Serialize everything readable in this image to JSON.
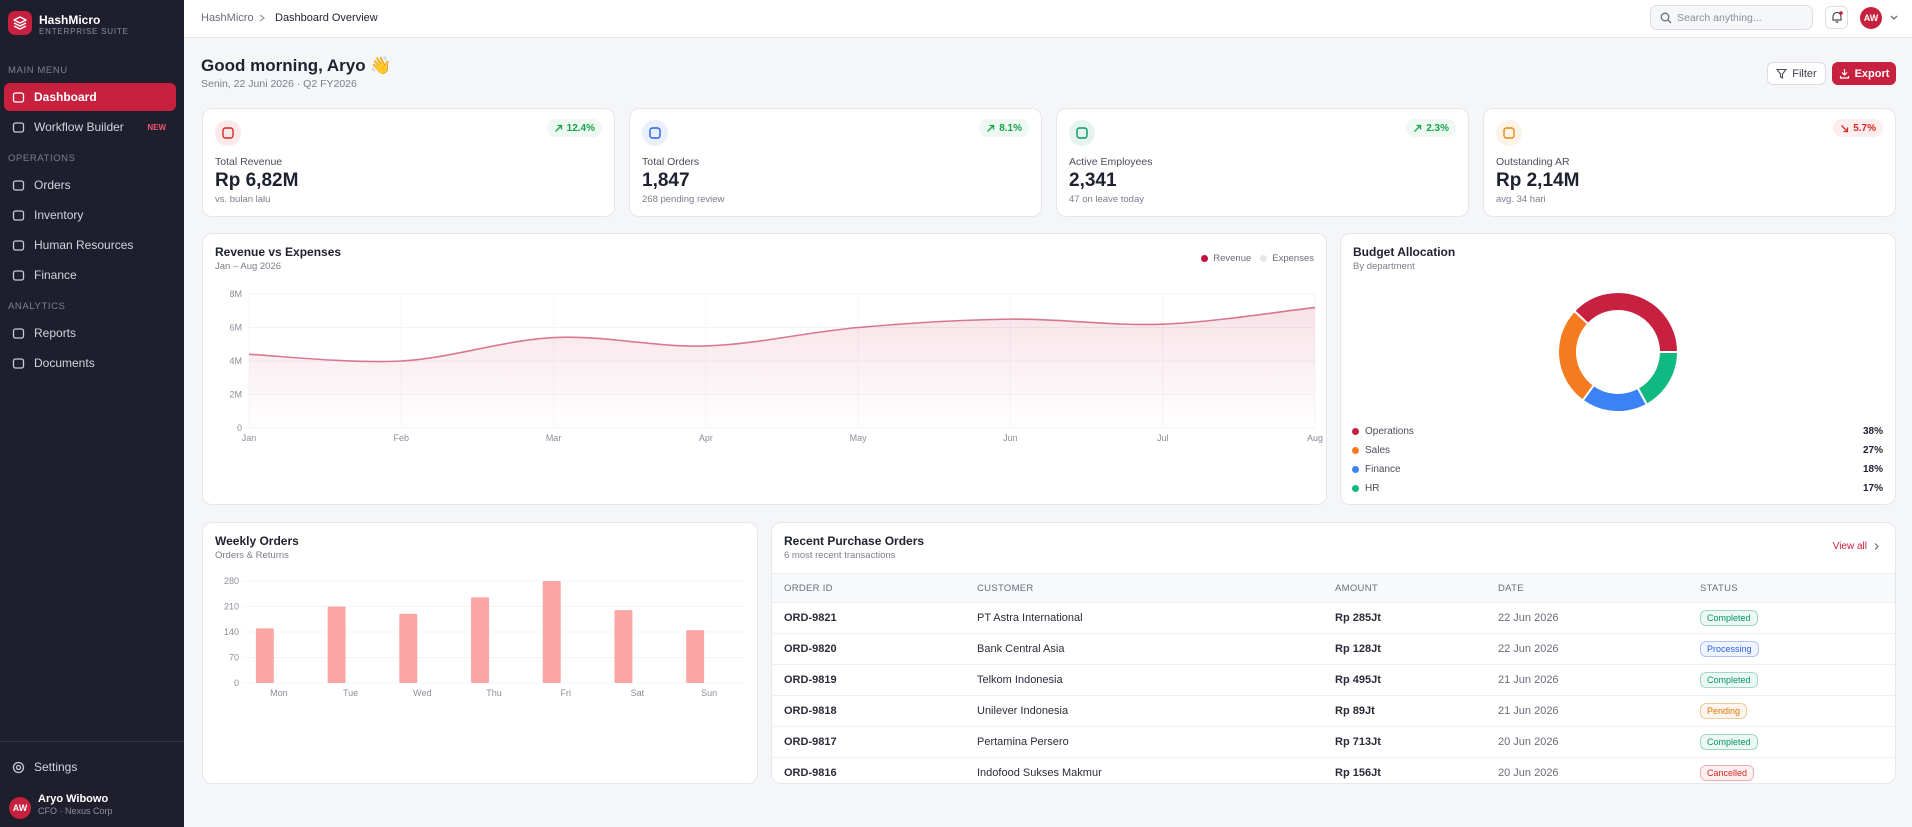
{
  "sidebar": {
    "brand": "HashMicro",
    "tagline": "ENTERPRISE SUITE",
    "sections": [
      {
        "title": "MAIN MENU",
        "items": [
          {
            "label": "Dashboard",
            "active": true
          },
          {
            "label": "Workflow Builder",
            "badge": "NEW"
          }
        ]
      },
      {
        "title": "OPERATIONS",
        "items": [
          {
            "label": "Orders"
          },
          {
            "label": "Inventory"
          },
          {
            "label": "Human Resources"
          },
          {
            "label": "Finance"
          }
        ]
      },
      {
        "title": "ANALYTICS",
        "items": [
          {
            "label": "Reports"
          },
          {
            "label": "Documents"
          }
        ]
      }
    ],
    "settings": "Settings",
    "user": {
      "initials": "AW",
      "name": "Aryo Wibowo",
      "role": "CFO · Nexus Corp"
    }
  },
  "topbar": {
    "breadcrumb": [
      "HashMicro",
      "Dashboard Overview"
    ],
    "search_placeholder": "Search anything...",
    "avatar": "AW"
  },
  "greeting": {
    "title": "Good morning, Aryo 👋",
    "date": "Senin, 22 Juni 2026 · Q2 FY2026",
    "buttons": [
      "Filter",
      "Export"
    ]
  },
  "kpis": [
    {
      "label": "Total Revenue",
      "value": "Rp 6,82M",
      "note": "vs. bulan lalu",
      "change": "12.4%",
      "trend": "up",
      "change_color": "#16a34a",
      "icon_color": "#dc2626"
    },
    {
      "label": "Total Orders",
      "value": "1,847",
      "note": "268 pending review",
      "change": "8.1%",
      "trend": "up",
      "change_color": "#16a34a",
      "icon_color": "#2563eb"
    },
    {
      "label": "Active Employees",
      "value": "2,341",
      "note": "47 on leave today",
      "change": "2.3%",
      "trend": "up",
      "change_color": "#16a34a",
      "icon_color": "#059669"
    },
    {
      "label": "Outstanding AR",
      "value": "Rp 2,14M",
      "note": "avg. 34 hari",
      "change": "5.7%",
      "trend": "down",
      "change_color": "#dc2626",
      "icon_color": "#ea8a0c"
    }
  ],
  "chart_data": [
    {
      "type": "line",
      "title": "Revenue vs Expenses",
      "subtitle": "Jan – Aug 2026",
      "categories": [
        "Jan",
        "Feb",
        "Mar",
        "Apr",
        "May",
        "Jun",
        "Jul",
        "Aug"
      ],
      "series": [
        {
          "name": "Revenue",
          "color": "#be123c",
          "values": [
            4.4,
            4.0,
            5.4,
            4.9,
            6.0,
            6.5,
            6.2,
            7.2
          ]
        },
        {
          "name": "Expenses",
          "color": "#e5e7eb",
          "values": [
            null,
            null,
            null,
            null,
            null,
            null,
            null,
            null
          ]
        }
      ],
      "ylim": [
        0,
        8
      ],
      "yticks": [
        0,
        {
          "value": 2,
          "label": "2M"
        },
        {
          "value": 4,
          "label": "4M"
        },
        {
          "value": 6,
          "label": "6M"
        },
        {
          "value": 8,
          "label": "8M"
        }
      ],
      "grid": true,
      "legend": "top-right"
    },
    {
      "type": "pie",
      "title": "Budget Allocation",
      "subtitle": "By department",
      "categories": [
        "Operations",
        "Sales",
        "Finance",
        "HR"
      ],
      "values": [
        38,
        27,
        18,
        17
      ],
      "value_labels": [
        "38%",
        "27%",
        "18%",
        "17%"
      ],
      "colors": [
        "#c8203f",
        "#f47b20",
        "#3b82f6",
        "#10b981"
      ]
    },
    {
      "type": "bar",
      "title": "Weekly Orders",
      "subtitle": "Orders & Returns",
      "categories": [
        "Mon",
        "Tue",
        "Wed",
        "Thu",
        "Fri",
        "Sat",
        "Sun"
      ],
      "values": [
        150,
        210,
        190,
        235,
        280,
        200,
        145
      ],
      "color": "#fca5a5",
      "ylim": [
        0,
        280
      ],
      "yticks": [
        0,
        70,
        140,
        210,
        280
      ],
      "grid": true
    }
  ],
  "recent_orders": {
    "title": "Recent Purchase Orders",
    "subtitle": "6 most recent transactions",
    "link": "View all",
    "columns": [
      "ORDER ID",
      "CUSTOMER",
      "AMOUNT",
      "DATE",
      "STATUS"
    ],
    "rows": [
      [
        "ORD-9821",
        "PT Astra International",
        "Rp 285Jt",
        "22 Jun 2026",
        "Completed"
      ],
      [
        "ORD-9820",
        "Bank Central Asia",
        "Rp 128Jt",
        "22 Jun 2026",
        "Processing"
      ],
      [
        "ORD-9819",
        "Telkom Indonesia",
        "Rp 495Jt",
        "21 Jun 2026",
        "Completed"
      ],
      [
        "ORD-9818",
        "Unilever Indonesia",
        "Rp 89Jt",
        "21 Jun 2026",
        "Pending"
      ],
      [
        "ORD-9817",
        "Pertamina Persero",
        "Rp 713Jt",
        "20 Jun 2026",
        "Completed"
      ],
      [
        "ORD-9816",
        "Indofood Sukses Makmur",
        "Rp 156Jt",
        "20 Jun 2026",
        "Cancelled"
      ]
    ],
    "status_colors": [
      "#059669",
      "#2563eb",
      "#059669",
      "#d97706",
      "#059669",
      "#dc2626"
    ]
  }
}
